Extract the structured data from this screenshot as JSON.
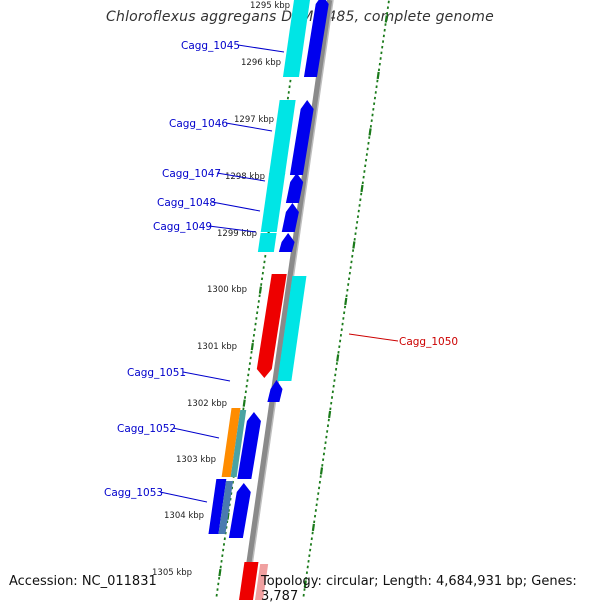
{
  "title": "Chloroflexus aggregans DSM 9485, complete genome",
  "accession_text": "Accession: NC_011831",
  "topology_text": "Topology: circular; Length: 4,684,931 bp; Genes: 3,787",
  "scale": {
    "labels": [
      "1295 kbp",
      "1296 kbp",
      "1297 kbp",
      "1298 kbp",
      "1299 kbp",
      "1300 kbp",
      "1301 kbp",
      "1302 kbp",
      "1303 kbp",
      "1304 kbp",
      "1305 kbp"
    ]
  },
  "genes": [
    {
      "name": "Cagg_1045",
      "strand": "forward"
    },
    {
      "name": "Cagg_1046",
      "strand": "forward"
    },
    {
      "name": "Cagg_1047",
      "strand": "forward"
    },
    {
      "name": "Cagg_1048",
      "strand": "forward"
    },
    {
      "name": "Cagg_1049",
      "strand": "forward"
    },
    {
      "name": "Cagg_1050",
      "strand": "reverse"
    },
    {
      "name": "Cagg_1051",
      "strand": "forward"
    },
    {
      "name": "Cagg_1052",
      "strand": "forward"
    },
    {
      "name": "Cagg_1053",
      "strand": "forward"
    }
  ],
  "colors": {
    "forward_cds": "#0000ee",
    "reverse_cds": "#ee0000",
    "gene_track": "#00e5e5",
    "rna_feature": "#ff8c00",
    "backbone": "#8a8a8a",
    "ticks": "#1a7a1a",
    "label_blue": "#0000cc",
    "label_red": "#cc0000"
  }
}
